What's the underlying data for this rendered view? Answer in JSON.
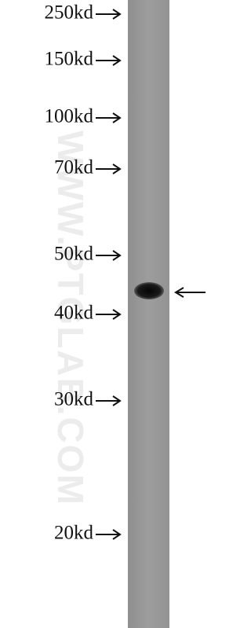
{
  "markers": {
    "labels": [
      "250kd",
      "150kd",
      "100kd",
      "70kd",
      "50kd",
      "40kd",
      "30kd",
      "20kd"
    ]
  },
  "watermark": "WWW.PTGLAB.COM"
}
